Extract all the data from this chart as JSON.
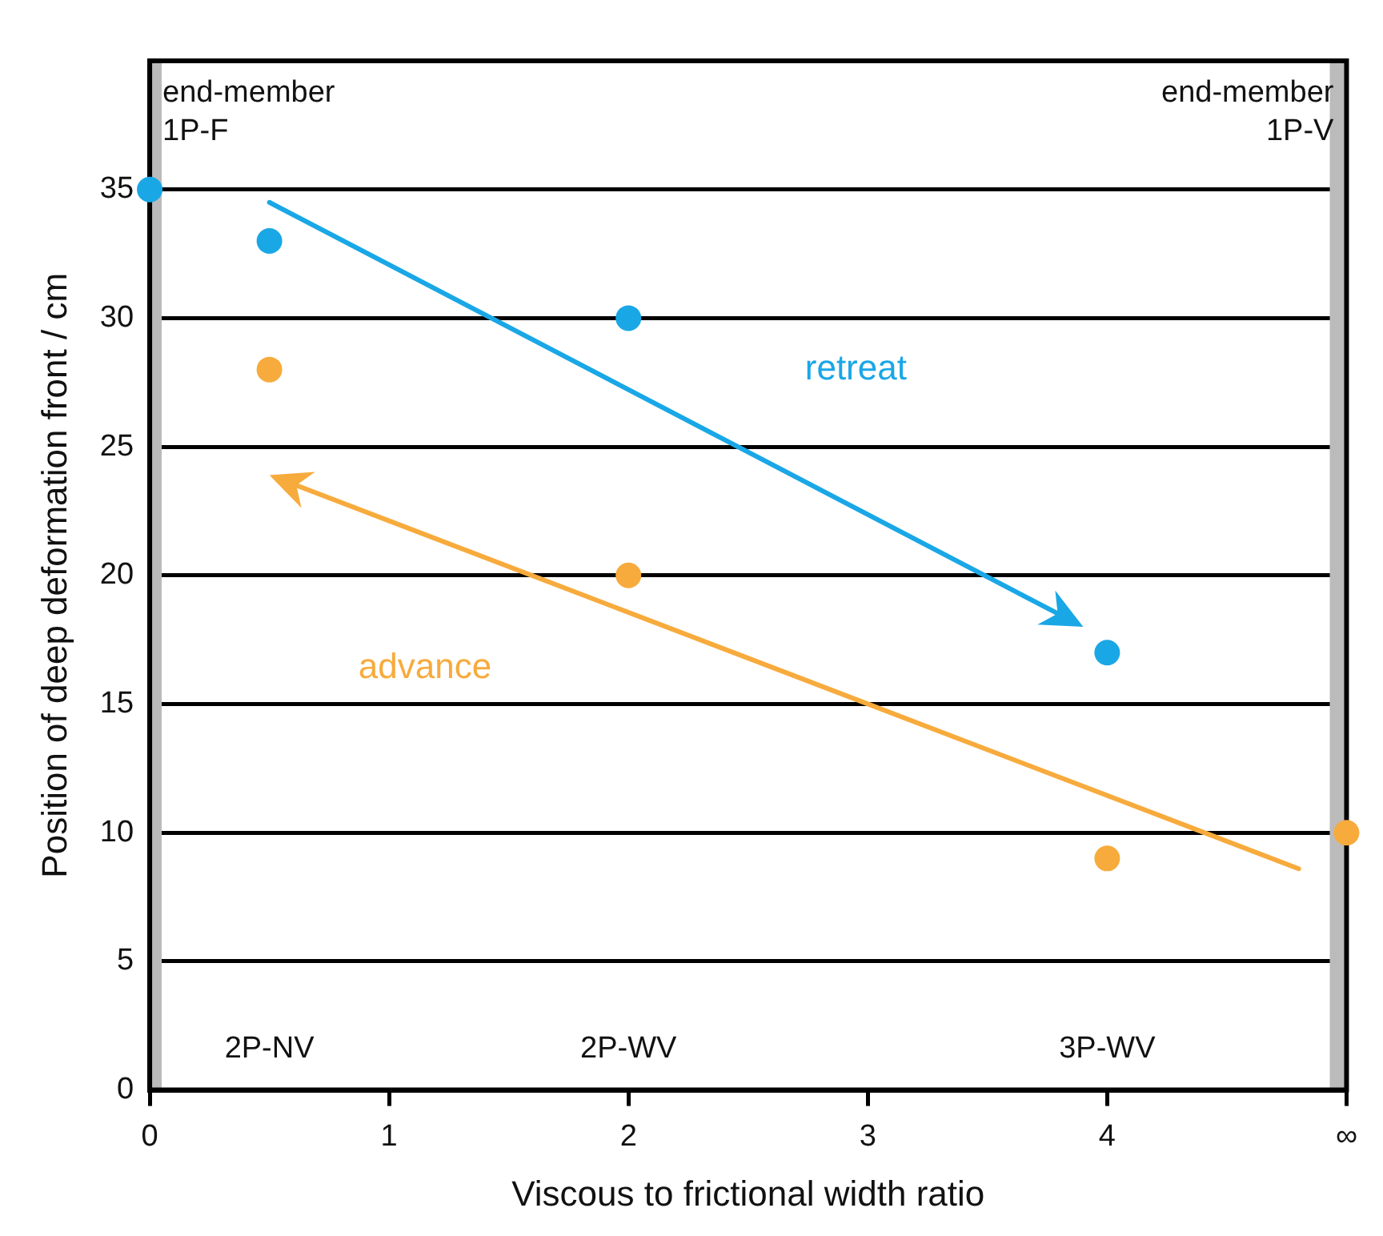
{
  "chart_data": {
    "type": "scatter",
    "xlabel": "Viscous to frictional width ratio",
    "ylabel": "Position of deep deformation front / cm",
    "xlim": [
      0,
      5
    ],
    "xticks": [
      0,
      1,
      2,
      3,
      4,
      {
        "value": 5,
        "label": "∞"
      }
    ],
    "ylim": [
      0,
      40
    ],
    "yticks": [
      0,
      5,
      10,
      15,
      20,
      25,
      30,
      35
    ],
    "grid": "y",
    "legend": false,
    "marker": "circle",
    "series": [
      {
        "color": "#1aa7e6",
        "x": [
          0,
          0.5,
          2,
          4
        ],
        "values": [
          35,
          33,
          30,
          17
        ]
      },
      {
        "color": "#f7ab3d",
        "x": [
          0.5,
          2,
          4,
          5
        ],
        "values": [
          28,
          20,
          9,
          10
        ]
      }
    ],
    "bands": [
      {
        "axis": "x",
        "from": 0,
        "to": 0.05,
        "color": "#bbbbbb"
      },
      {
        "axis": "x",
        "from": 4.93,
        "to": 5,
        "color": "#bbbbbb"
      }
    ],
    "annotations": [
      {
        "text": "end-member\n1P-F",
        "x": 0,
        "y": 38
      },
      {
        "text": "end-member\n1P-V",
        "x": 5,
        "y": 38
      },
      "2P-NV",
      "2P-WV",
      "3P-WV",
      "retreat",
      "advance"
    ]
  }
}
